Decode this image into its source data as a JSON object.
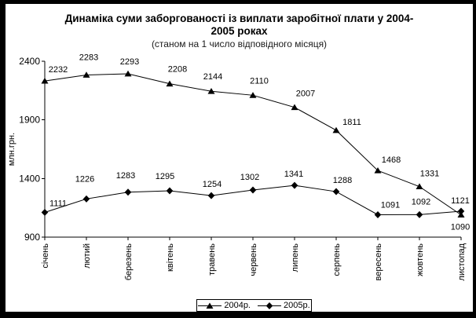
{
  "frame": {
    "border_color": "#000000",
    "background_color": "#ffffff"
  },
  "chart_data": {
    "type": "line",
    "title": "Динаміка суми заборгованості із виплати заробітної плати у 2004-2005 роках",
    "title_lines": [
      "Динаміка суми заборгованості із виплати заробітної плати у 2004-",
      "2005 роках"
    ],
    "subtitle": "(станом на 1 число відповідного місяця)",
    "ylabel": "млн.грн.",
    "xlabel": "",
    "ylim": [
      900,
      2400
    ],
    "yticks": [
      2400,
      1900,
      1400,
      900
    ],
    "grid": false,
    "legend_position": "bottom-center",
    "categories": [
      "січень",
      "лютий",
      "березень",
      "квітень",
      "травень",
      "червень",
      "липень",
      "серпень",
      "вересень",
      "жовтень",
      "листопад"
    ],
    "series": [
      {
        "name": "2004р.",
        "marker": "triangle",
        "color": "#000000",
        "values": [
          2232,
          2283,
          2293,
          2208,
          2144,
          2110,
          2007,
          1811,
          1468,
          1331,
          1090
        ]
      },
      {
        "name": "2005р.",
        "marker": "diamond",
        "color": "#000000",
        "values": [
          1111,
          1226,
          1283,
          1295,
          1254,
          1302,
          1341,
          1288,
          1091,
          1092,
          1121
        ]
      }
    ]
  }
}
